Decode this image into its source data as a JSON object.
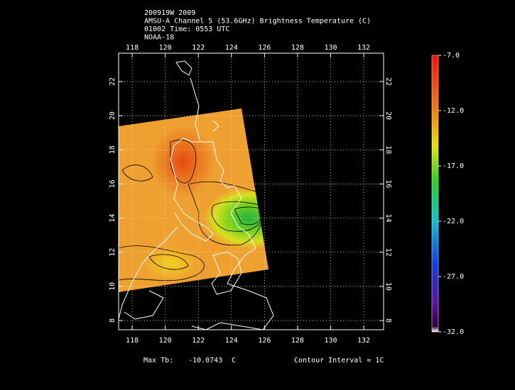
{
  "header": {
    "lines": [
      "200919W 2009",
      "AMSU-A Channel 5 (53.6GHz) Brightness Temperature (C)",
      "01002 Time: 0553 UTC",
      "NOAA-18"
    ]
  },
  "chart_data": {
    "type": "map",
    "xlim": [
      117.18,
      133.2
    ],
    "ylim": [
      7.46,
      23.66
    ],
    "xticks": [
      118,
      120,
      122,
      124,
      126,
      128,
      130,
      132
    ],
    "yticks": [
      8,
      10,
      12,
      14,
      16,
      18,
      20,
      22
    ],
    "colorbar": {
      "lim": [
        -32,
        -7
      ],
      "ticks": [
        {
          "value": -7,
          "label": "-7.0"
        },
        {
          "value": -12,
          "label": "-12.0"
        },
        {
          "value": -17,
          "label": "-17.0"
        },
        {
          "value": -22,
          "label": "-22.0"
        },
        {
          "value": -27,
          "label": "-27.0"
        },
        {
          "value": -32,
          "label": "-32.0"
        }
      ]
    }
  },
  "footer": {
    "max_tb_label": "Max Tb:",
    "max_tb": -10.0743,
    "max_tb_unit": "C",
    "contour_interval": "Contour Interval = 1C"
  }
}
